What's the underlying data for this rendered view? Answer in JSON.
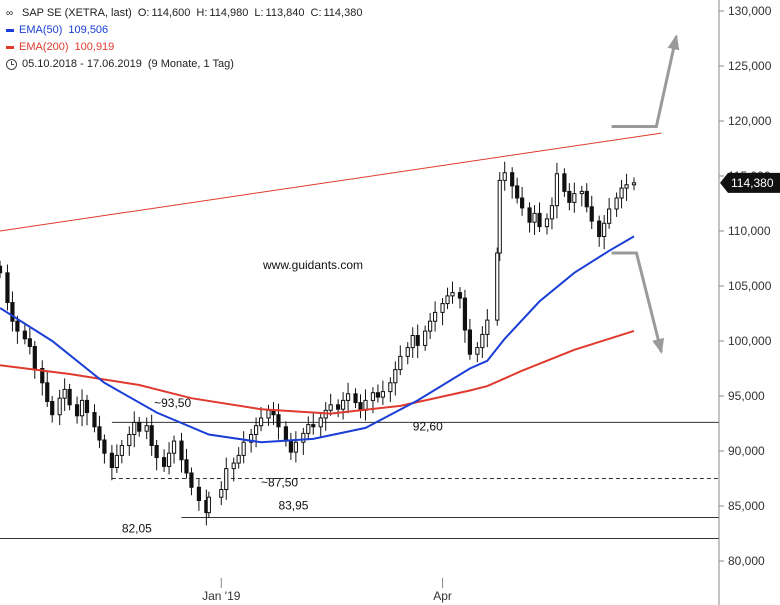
{
  "legend": {
    "symbol": "SAP SE (XETRA, last)",
    "open_label": "O:",
    "open": "114,600",
    "high_label": "H:",
    "high": "114,980",
    "low_label": "L:",
    "low": "113,840",
    "close_label": "C:",
    "close": "114,380",
    "ema50_label": "EMA(50)",
    "ema50_value": "109,506",
    "ema200_label": "EMA(200)",
    "ema200_value": "100,919",
    "period": "05.10.2018 - 17.06.2019",
    "period_detail": "(9 Monate, 1 Tag)"
  },
  "watermark": "www.guidants.com",
  "price_badge": "114,380",
  "colors": {
    "ema50": "#1a3ed6",
    "ema200": "#e03a2e",
    "trendline": "#e03a2e",
    "arrow": "#9a9a9a",
    "badge_bg": "#111111",
    "candle": "#111111"
  },
  "chart_data": {
    "type": "candlestick",
    "title": "SAP SE (XETRA, last)",
    "x_range": [
      "2018-10-05",
      "2019-06-17"
    ],
    "ylim": [
      76000,
      131000
    ],
    "y_ticks": [
      80000,
      85000,
      90000,
      95000,
      100000,
      105000,
      110000,
      115000,
      120000,
      125000,
      130000
    ],
    "y_tick_labels": [
      "80,000",
      "85,000",
      "90,000",
      "95,000",
      "100,000",
      "105,000",
      "110,000",
      "115,000",
      "120,000",
      "125,000",
      "130,000"
    ],
    "x_ticks": [
      {
        "date": "2019-01-02",
        "label": "Jan '19"
      },
      {
        "date": "2019-04-01",
        "label": "Apr"
      }
    ],
    "close": [
      [
        "2018-10-05",
        106200
      ],
      [
        "2018-10-08",
        103500
      ],
      [
        "2018-10-10",
        101800
      ],
      [
        "2018-10-12",
        100900
      ],
      [
        "2018-10-15",
        100200
      ],
      [
        "2018-10-17",
        99500
      ],
      [
        "2018-10-19",
        97500
      ],
      [
        "2018-10-22",
        96200
      ],
      [
        "2018-10-24",
        94500
      ],
      [
        "2018-10-26",
        93300
      ],
      [
        "2018-10-29",
        94800
      ],
      [
        "2018-10-31",
        95600
      ],
      [
        "2018-11-02",
        94200
      ],
      [
        "2018-11-05",
        93200
      ],
      [
        "2018-11-07",
        94600
      ],
      [
        "2018-11-09",
        93500
      ],
      [
        "2018-11-12",
        92200
      ],
      [
        "2018-11-14",
        91000
      ],
      [
        "2018-11-16",
        89800
      ],
      [
        "2018-11-19",
        88500
      ],
      [
        "2018-11-21",
        89600
      ],
      [
        "2018-11-23",
        90500
      ],
      [
        "2018-11-26",
        91500
      ],
      [
        "2018-11-28",
        92600
      ],
      [
        "2018-11-30",
        91800
      ],
      [
        "2018-12-03",
        92300
      ],
      [
        "2018-12-05",
        90500
      ],
      [
        "2018-12-07",
        89400
      ],
      [
        "2018-12-10",
        88600
      ],
      [
        "2018-12-12",
        89800
      ],
      [
        "2018-12-14",
        90900
      ],
      [
        "2018-12-17",
        89200
      ],
      [
        "2018-12-19",
        88000
      ],
      [
        "2018-12-21",
        86700
      ],
      [
        "2018-12-24",
        85500
      ],
      [
        "2018-12-27",
        84400
      ],
      [
        "2018-12-28",
        85800
      ],
      [
        "2019-01-02",
        86500
      ],
      [
        "2019-01-04",
        88400
      ],
      [
        "2019-01-07",
        88900
      ],
      [
        "2019-01-09",
        89600
      ],
      [
        "2019-01-11",
        90800
      ],
      [
        "2019-01-14",
        91500
      ],
      [
        "2019-01-16",
        92300
      ],
      [
        "2019-01-18",
        93000
      ],
      [
        "2019-01-21",
        93700
      ],
      [
        "2019-01-23",
        93300
      ],
      [
        "2019-01-25",
        92200
      ],
      [
        "2019-01-28",
        90900
      ],
      [
        "2019-01-30",
        89900
      ],
      [
        "2019-02-01",
        90800
      ],
      [
        "2019-02-04",
        91600
      ],
      [
        "2019-02-06",
        92400
      ],
      [
        "2019-02-08",
        92200
      ],
      [
        "2019-02-11",
        93000
      ],
      [
        "2019-02-13",
        93700
      ],
      [
        "2019-02-15",
        94200
      ],
      [
        "2019-02-18",
        93800
      ],
      [
        "2019-02-20",
        94600
      ],
      [
        "2019-02-22",
        95200
      ],
      [
        "2019-02-25",
        94400
      ],
      [
        "2019-02-27",
        93700
      ],
      [
        "2019-03-01",
        94600
      ],
      [
        "2019-03-04",
        95300
      ],
      [
        "2019-03-06",
        94900
      ],
      [
        "2019-03-08",
        95400
      ],
      [
        "2019-03-11",
        96200
      ],
      [
        "2019-03-13",
        97400
      ],
      [
        "2019-03-15",
        98600
      ],
      [
        "2019-03-18",
        99400
      ],
      [
        "2019-03-20",
        100500
      ],
      [
        "2019-03-22",
        99600
      ],
      [
        "2019-03-25",
        100900
      ],
      [
        "2019-03-27",
        101800
      ],
      [
        "2019-03-29",
        102600
      ],
      [
        "2019-04-01",
        103400
      ],
      [
        "2019-04-03",
        104100
      ],
      [
        "2019-04-05",
        104400
      ],
      [
        "2019-04-08",
        103900
      ],
      [
        "2019-04-10",
        101000
      ],
      [
        "2019-04-12",
        98800
      ],
      [
        "2019-04-15",
        99400
      ],
      [
        "2019-04-17",
        100600
      ],
      [
        "2019-04-19",
        101900
      ],
      [
        "2019-04-23",
        108000
      ],
      [
        "2019-04-24",
        114600
      ],
      [
        "2019-04-26",
        115300
      ],
      [
        "2019-04-29",
        114100
      ],
      [
        "2019-05-01",
        113000
      ],
      [
        "2019-05-03",
        112100
      ],
      [
        "2019-05-06",
        110800
      ],
      [
        "2019-05-08",
        111600
      ],
      [
        "2019-05-10",
        110400
      ],
      [
        "2019-05-13",
        111100
      ],
      [
        "2019-05-15",
        112300
      ],
      [
        "2019-05-17",
        115200
      ],
      [
        "2019-05-20",
        113600
      ],
      [
        "2019-05-22",
        112600
      ],
      [
        "2019-05-24",
        113400
      ],
      [
        "2019-05-27",
        113600
      ],
      [
        "2019-05-29",
        112200
      ],
      [
        "2019-05-31",
        110900
      ],
      [
        "2019-06-03",
        109500
      ],
      [
        "2019-06-05",
        110700
      ],
      [
        "2019-06-07",
        112000
      ],
      [
        "2019-06-10",
        113000
      ],
      [
        "2019-06-12",
        113900
      ],
      [
        "2019-06-14",
        114200
      ],
      [
        "2019-06-17",
        114380
      ]
    ],
    "ema50": [
      [
        "2018-10-05",
        103000
      ],
      [
        "2018-10-26",
        100000
      ],
      [
        "2018-11-16",
        96200
      ],
      [
        "2018-12-07",
        93500
      ],
      [
        "2018-12-28",
        91500
      ],
      [
        "2019-01-18",
        90800
      ],
      [
        "2019-02-08",
        91100
      ],
      [
        "2019-03-01",
        92100
      ],
      [
        "2019-03-22",
        94600
      ],
      [
        "2019-04-12",
        97500
      ],
      [
        "2019-04-19",
        98200
      ],
      [
        "2019-04-26",
        100200
      ],
      [
        "2019-05-10",
        103600
      ],
      [
        "2019-05-24",
        106200
      ],
      [
        "2019-06-07",
        108200
      ],
      [
        "2019-06-17",
        109506
      ]
    ],
    "ema200": [
      [
        "2018-10-05",
        97800
      ],
      [
        "2018-11-02",
        97000
      ],
      [
        "2018-11-30",
        96000
      ],
      [
        "2018-12-21",
        94800
      ],
      [
        "2019-01-18",
        93800
      ],
      [
        "2019-02-15",
        93400
      ],
      [
        "2019-03-15",
        94100
      ],
      [
        "2019-04-12",
        95500
      ],
      [
        "2019-04-19",
        95900
      ],
      [
        "2019-05-03",
        97300
      ],
      [
        "2019-05-24",
        99200
      ],
      [
        "2019-06-17",
        100919
      ]
    ],
    "trendline": [
      [
        "2018-10-05",
        110000
      ],
      [
        "2019-06-28",
        118900
      ]
    ],
    "horizontal_levels": [
      {
        "value": 92600,
        "label": "92,60",
        "style": "solid",
        "from": "2018-11-19"
      },
      {
        "value": 87500,
        "label": "~87,50",
        "style": "dashed",
        "from": "2018-11-19"
      },
      {
        "value": 83950,
        "label": "83,95",
        "style": "solid",
        "from": "2018-12-17"
      },
      {
        "value": 82050,
        "label": "82,05",
        "style": "solid",
        "from": "2018-10-05"
      }
    ],
    "annotations": [
      {
        "text": "~93,50",
        "x": "2018-12-10",
        "y": 94000
      }
    ],
    "scenario_arrows": [
      {
        "direction": "up",
        "points": [
          [
            "2019-06-08",
            119500
          ],
          [
            "2019-06-26",
            119500
          ],
          [
            "2019-07-04",
            127700
          ]
        ]
      },
      {
        "direction": "down",
        "points": [
          [
            "2019-06-08",
            108000
          ],
          [
            "2019-06-18",
            108000
          ],
          [
            "2019-06-28",
            99000
          ]
        ]
      }
    ]
  }
}
